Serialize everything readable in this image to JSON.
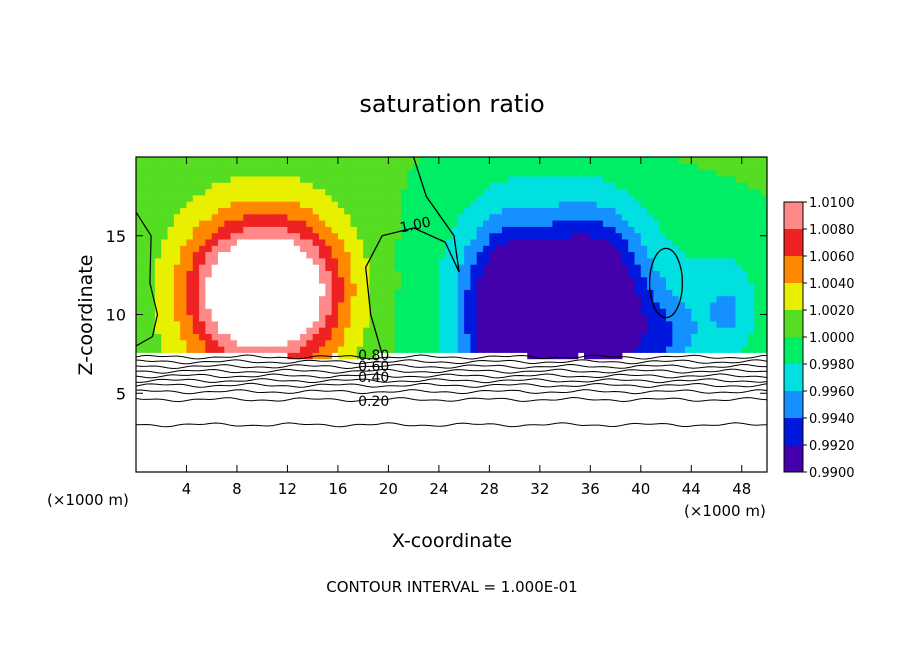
{
  "chart_data": {
    "type": "heatmap",
    "title": "saturation ratio",
    "xlabel": "X-coordinate",
    "ylabel": "Z-coordinate",
    "x_unit_left": "(×1000 m)",
    "x_unit_right": "(×1000 m)",
    "footer": "CONTOUR INTERVAL = 1.000E-01",
    "xlim": [
      0,
      50
    ],
    "ylim": [
      0,
      20
    ],
    "x_ticks": [
      4,
      8,
      12,
      16,
      20,
      24,
      28,
      32,
      36,
      40,
      44,
      48
    ],
    "y_ticks": [
      5,
      10,
      15
    ],
    "colorbar": {
      "min": 0.99,
      "max": 1.01,
      "labels": [
        "1.0100",
        "1.0080",
        "1.0060",
        "1.0040",
        "1.0020",
        "1.0000",
        "0.9980",
        "0.9960",
        "0.9940",
        "0.9920",
        "0.9900"
      ],
      "colors": [
        "#ff8888",
        "#ee2222",
        "#ff8800",
        "#e8f000",
        "#55dd22",
        "#00ee66",
        "#00e0e0",
        "#1490ff",
        "#0018dd",
        "#4400aa"
      ]
    },
    "contour_labels": [
      {
        "text": "1.00",
        "x": 21,
        "y": 15.2
      },
      {
        "text": "0.80",
        "x": 17.6,
        "y": 7.1
      },
      {
        "text": "0.60",
        "x": 17.6,
        "y": 6.4
      },
      {
        "text": "0.40",
        "x": 17.6,
        "y": 5.7
      },
      {
        "text": "0.20",
        "x": 17.6,
        "y": 4.2
      }
    ],
    "below_cloud_contours": [
      7.3,
      7.0,
      6.7,
      6.4,
      6.1,
      5.8,
      5.5,
      5.1,
      4.6,
      3.0
    ],
    "anomalies": [
      {
        "value": 1.0095,
        "x": 8,
        "y": 11.5,
        "sx": 3.0,
        "sy": 3.0
      },
      {
        "value": 1.0095,
        "x": 12.5,
        "y": 11.6,
        "sx": 3.0,
        "sy": 3.0
      },
      {
        "value": 1.004,
        "x": 10,
        "y": 10.5,
        "sx": 5.0,
        "sy": 5.0
      },
      {
        "value": 0.9905,
        "x": 29.5,
        "y": 9.8,
        "sx": 2.2,
        "sy": 3.5
      },
      {
        "value": 0.992,
        "x": 34,
        "y": 9.8,
        "sx": 3.0,
        "sy": 3.5
      },
      {
        "value": 0.9935,
        "x": 37,
        "y": 10.5,
        "sx": 2.5,
        "sy": 4.0
      },
      {
        "value": 0.996,
        "x": 31,
        "y": 11,
        "sx": 6.0,
        "sy": 6.0
      },
      {
        "value": 0.9965,
        "x": 42,
        "y": 8.5,
        "sx": 2.0,
        "sy": 2.0
      },
      {
        "value": 0.9975,
        "x": 47,
        "y": 10,
        "sx": 1.5,
        "sy": 2.0
      },
      {
        "value": 0.9985,
        "x": 45,
        "y": 12,
        "sx": 5.0,
        "sy": 4.0
      }
    ]
  }
}
